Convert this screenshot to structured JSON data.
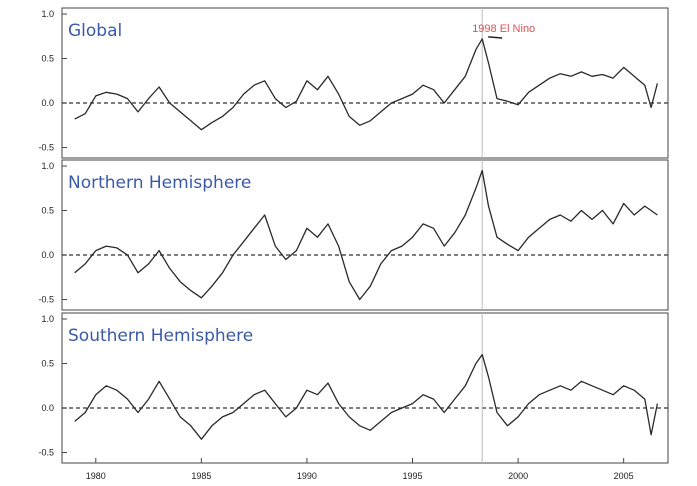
{
  "colors": {
    "panel_title": "#3a5aa8",
    "annotation": "#e05050",
    "series_line": "#2a2a2a",
    "zero_line": "#333333",
    "event_line": "#bbbbbb"
  },
  "chart_data": [
    {
      "type": "line",
      "title": "Global",
      "xlabel": "",
      "ylabel": "",
      "xlim": [
        1978.4,
        2007.1
      ],
      "ylim": [
        -0.55,
        1.0
      ],
      "yticks": [
        "1.0",
        "0.5",
        "0.0",
        "-0.5"
      ],
      "zero_line": true,
      "annotation": {
        "text": "1998 El Nino",
        "x": 1998.3,
        "y": 0.72
      },
      "series": [
        {
          "x": [
            1979.0,
            1979.5,
            1980.0,
            1980.5,
            1981.0,
            1981.5,
            1982.0,
            1982.5,
            1983.0,
            1983.5,
            1984.0,
            1984.5,
            1985.0,
            1985.5,
            1986.0,
            1986.5,
            1987.0,
            1987.5,
            1988.0,
            1988.5,
            1989.0,
            1989.5,
            1990.0,
            1990.5,
            1991.0,
            1991.5,
            1992.0,
            1992.5,
            1993.0,
            1993.5,
            1994.0,
            1994.5,
            1995.0,
            1995.5,
            1996.0,
            1996.5,
            1997.0,
            1997.5,
            1998.0,
            1998.3,
            1998.6,
            1999.0,
            1999.5,
            2000.0,
            2000.5,
            2001.0,
            2001.5,
            2002.0,
            2002.5,
            2003.0,
            2003.5,
            2004.0,
            2004.5,
            2005.0,
            2005.5,
            2006.0,
            2006.3,
            2006.6
          ],
          "values": [
            -0.18,
            -0.12,
            0.08,
            0.12,
            0.1,
            0.05,
            -0.1,
            0.05,
            0.18,
            0.0,
            -0.1,
            -0.2,
            -0.3,
            -0.22,
            -0.15,
            -0.05,
            0.1,
            0.2,
            0.25,
            0.05,
            -0.05,
            0.02,
            0.25,
            0.15,
            0.3,
            0.1,
            -0.15,
            -0.25,
            -0.2,
            -0.1,
            0.0,
            0.05,
            0.1,
            0.2,
            0.15,
            0.0,
            0.15,
            0.3,
            0.6,
            0.72,
            0.45,
            0.05,
            0.02,
            -0.02,
            0.12,
            0.2,
            0.28,
            0.33,
            0.3,
            0.35,
            0.3,
            0.32,
            0.28,
            0.4,
            0.3,
            0.2,
            -0.05,
            0.22
          ]
        }
      ]
    },
    {
      "type": "line",
      "title": "Northern Hemisphere",
      "xlabel": "",
      "ylabel": "",
      "xlim": [
        1978.4,
        2007.1
      ],
      "ylim": [
        -0.55,
        1.0
      ],
      "yticks": [
        "1.0",
        "0.5",
        "0.0",
        "-0.5"
      ],
      "zero_line": true,
      "series": [
        {
          "x": [
            1979.0,
            1979.5,
            1980.0,
            1980.5,
            1981.0,
            1981.5,
            1982.0,
            1982.5,
            1983.0,
            1983.5,
            1984.0,
            1984.5,
            1985.0,
            1985.5,
            1986.0,
            1986.5,
            1987.0,
            1987.5,
            1988.0,
            1988.5,
            1989.0,
            1989.5,
            1990.0,
            1990.5,
            1991.0,
            1991.5,
            1992.0,
            1992.5,
            1993.0,
            1993.5,
            1994.0,
            1994.5,
            1995.0,
            1995.5,
            1996.0,
            1996.5,
            1997.0,
            1997.5,
            1998.0,
            1998.3,
            1998.6,
            1999.0,
            1999.5,
            2000.0,
            2000.5,
            2001.0,
            2001.5,
            2002.0,
            2002.5,
            2003.0,
            2003.5,
            2004.0,
            2004.5,
            2005.0,
            2005.5,
            2006.0,
            2006.3,
            2006.6
          ],
          "values": [
            -0.2,
            -0.1,
            0.05,
            0.1,
            0.08,
            0.0,
            -0.2,
            -0.1,
            0.05,
            -0.15,
            -0.3,
            -0.4,
            -0.48,
            -0.35,
            -0.2,
            0.0,
            0.15,
            0.3,
            0.45,
            0.1,
            -0.05,
            0.05,
            0.3,
            0.2,
            0.35,
            0.1,
            -0.3,
            -0.5,
            -0.35,
            -0.1,
            0.05,
            0.1,
            0.2,
            0.35,
            0.3,
            0.1,
            0.25,
            0.45,
            0.75,
            0.95,
            0.55,
            0.2,
            0.12,
            0.05,
            0.2,
            0.3,
            0.4,
            0.45,
            0.38,
            0.5,
            0.4,
            0.5,
            0.35,
            0.58,
            0.45,
            0.55,
            0.5,
            0.45
          ]
        }
      ]
    },
    {
      "type": "line",
      "title": "Southern Hemisphere",
      "xlabel": "",
      "ylabel": "",
      "xlim": [
        1978.4,
        2007.1
      ],
      "ylim": [
        -0.55,
        1.0
      ],
      "xticks": [
        "1980",
        "1985",
        "1990",
        "1995",
        "2000",
        "2005"
      ],
      "yticks": [
        "1.0",
        "0.5",
        "0.0",
        "-0.5"
      ],
      "zero_line": true,
      "series": [
        {
          "x": [
            1979.0,
            1979.5,
            1980.0,
            1980.5,
            1981.0,
            1981.5,
            1982.0,
            1982.5,
            1983.0,
            1983.5,
            1984.0,
            1984.5,
            1985.0,
            1985.5,
            1986.0,
            1986.5,
            1987.0,
            1987.5,
            1988.0,
            1988.5,
            1989.0,
            1989.5,
            1990.0,
            1990.5,
            1991.0,
            1991.5,
            1992.0,
            1992.5,
            1993.0,
            1993.5,
            1994.0,
            1994.5,
            1995.0,
            1995.5,
            1996.0,
            1996.5,
            1997.0,
            1997.5,
            1998.0,
            1998.3,
            1998.6,
            1999.0,
            1999.5,
            2000.0,
            2000.5,
            2001.0,
            2001.5,
            2002.0,
            2002.5,
            2003.0,
            2003.5,
            2004.0,
            2004.5,
            2005.0,
            2005.5,
            2006.0,
            2006.3,
            2006.6
          ],
          "values": [
            -0.15,
            -0.05,
            0.15,
            0.25,
            0.2,
            0.1,
            -0.05,
            0.1,
            0.3,
            0.1,
            -0.1,
            -0.2,
            -0.35,
            -0.2,
            -0.1,
            -0.05,
            0.05,
            0.15,
            0.2,
            0.05,
            -0.1,
            0.0,
            0.2,
            0.15,
            0.28,
            0.05,
            -0.1,
            -0.2,
            -0.25,
            -0.15,
            -0.05,
            0.0,
            0.05,
            0.15,
            0.1,
            -0.05,
            0.1,
            0.25,
            0.5,
            0.6,
            0.35,
            -0.05,
            -0.2,
            -0.1,
            0.05,
            0.15,
            0.2,
            0.25,
            0.2,
            0.3,
            0.25,
            0.2,
            0.15,
            0.25,
            0.2,
            0.1,
            -0.3,
            0.05
          ]
        }
      ]
    }
  ]
}
